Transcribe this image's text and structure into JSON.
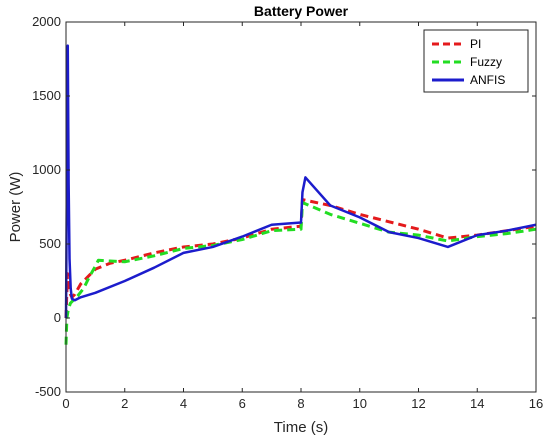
{
  "chart_data": {
    "type": "line",
    "title": "Battery Power",
    "xlabel": "Time (s)",
    "ylabel": "Power (W)",
    "xlim": [
      0,
      16
    ],
    "ylim": [
      -500,
      2000
    ],
    "xticks": [
      "0",
      "2",
      "4",
      "6",
      "8",
      "10",
      "12",
      "14",
      "16"
    ],
    "yticks": [
      "-500",
      "0",
      "500",
      "1000",
      "1500",
      "2000"
    ],
    "grid": false,
    "legend_position": "top-right",
    "series": [
      {
        "name": "PI",
        "color": "#e41a1c",
        "style": "dashed",
        "x": [
          0,
          0.05,
          0.1,
          0.15,
          0.2,
          0.3,
          0.5,
          1.0,
          1.5,
          2,
          3,
          4,
          5,
          6,
          7,
          8,
          8.05,
          9,
          10,
          11,
          12,
          13,
          14,
          15,
          16
        ],
        "y": [
          0,
          300,
          220,
          160,
          140,
          160,
          230,
          330,
          370,
          390,
          440,
          480,
          500,
          540,
          600,
          620,
          800,
          760,
          700,
          650,
          600,
          540,
          560,
          590,
          620
        ]
      },
      {
        "name": "Fuzzy",
        "color": "#22dd22",
        "style": "dashed",
        "x": [
          0,
          0.03,
          0.08,
          0.15,
          0.25,
          0.4,
          0.6,
          0.8,
          1.0,
          1.1,
          1.5,
          2,
          3,
          4,
          5,
          6,
          7,
          8,
          8.05,
          9,
          10,
          11,
          12,
          13,
          14,
          15,
          16
        ],
        "y": [
          -180,
          0,
          60,
          100,
          120,
          150,
          200,
          280,
          350,
          390,
          385,
          380,
          420,
          470,
          490,
          530,
          590,
          600,
          780,
          700,
          640,
          580,
          560,
          520,
          550,
          570,
          600
        ]
      },
      {
        "name": "ANFIS",
        "color": "#1c1ccc",
        "style": "solid",
        "x": [
          0,
          0.03,
          0.06,
          0.09,
          0.12,
          0.16,
          0.2,
          0.3,
          0.5,
          1,
          2,
          3,
          4,
          5,
          6,
          7,
          8,
          8.05,
          8.15,
          9,
          10,
          11,
          12,
          13,
          14,
          15,
          16
        ],
        "y": [
          0,
          900,
          1840,
          900,
          400,
          200,
          130,
          120,
          140,
          170,
          250,
          340,
          440,
          480,
          550,
          630,
          645,
          850,
          950,
          760,
          680,
          580,
          540,
          480,
          560,
          590,
          630
        ]
      }
    ]
  }
}
